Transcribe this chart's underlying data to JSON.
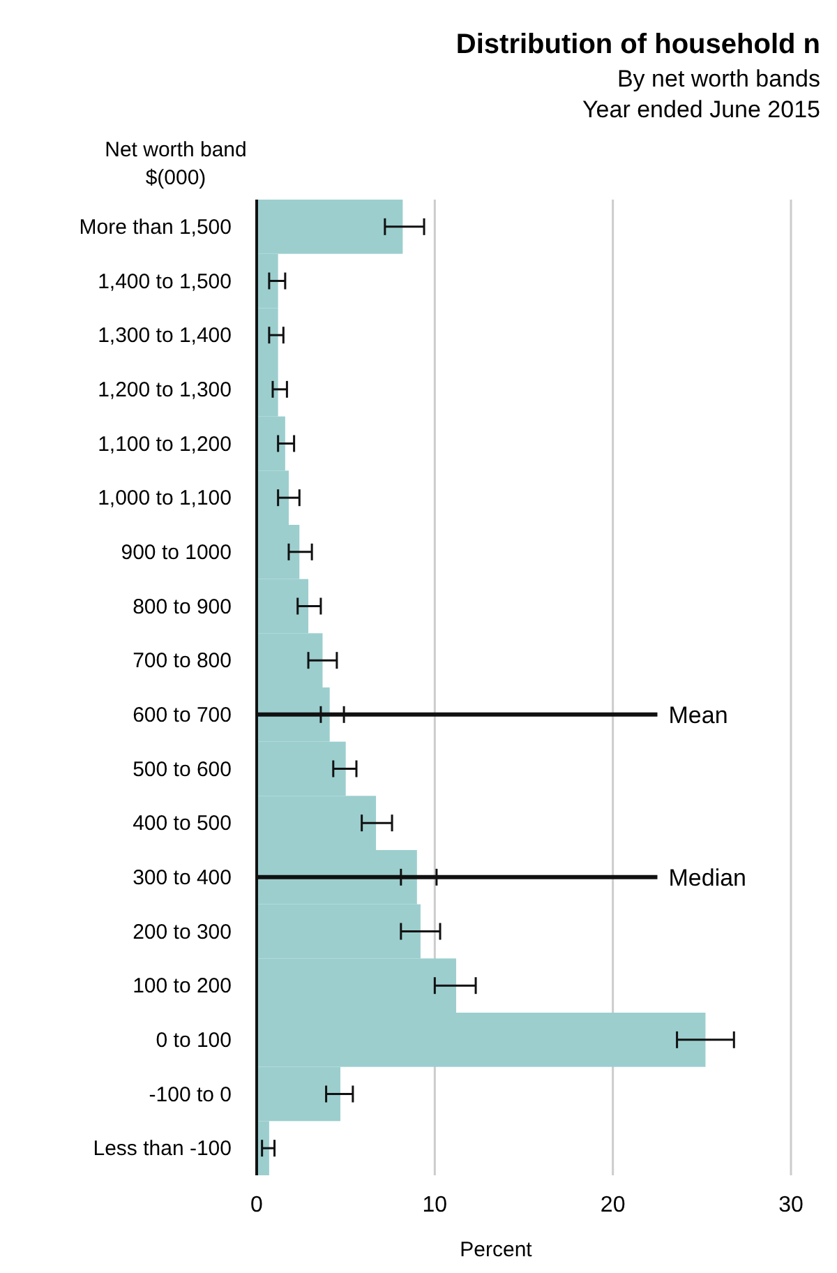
{
  "chart_data": {
    "type": "bar",
    "orientation": "horizontal",
    "title": "Distribution of household n",
    "subtitle": "By net worth bands\nYear ended June 2015",
    "ylabel": "Net worth band\n$(000)",
    "xlabel": "Percent",
    "categories": [
      "More than 1,500",
      "1,400 to 1,500",
      "1,300 to 1,400",
      "1,200 to 1,300",
      "1,100 to 1,200",
      "1,000 to 1,100",
      "900 to 1000",
      "800 to 900",
      "700 to 800",
      "600 to 700",
      "500 to 600",
      "400 to 500",
      "300 to 400",
      "200 to 300",
      "100 to 200",
      "0 to 100",
      "-100 to 0",
      "Less than -100"
    ],
    "values": [
      8.2,
      1.2,
      1.2,
      1.2,
      1.6,
      1.8,
      2.4,
      2.9,
      3.7,
      4.1,
      5.0,
      6.7,
      9.0,
      9.2,
      11.2,
      25.2,
      4.7,
      0.7
    ],
    "errors": [
      [
        7.2,
        9.4
      ],
      [
        0.7,
        1.6
      ],
      [
        0.7,
        1.5
      ],
      [
        0.9,
        1.7
      ],
      [
        1.2,
        2.1
      ],
      [
        1.2,
        2.4
      ],
      [
        1.8,
        3.1
      ],
      [
        2.3,
        3.6
      ],
      [
        2.9,
        4.5
      ],
      [
        3.6,
        4.9
      ],
      [
        4.3,
        5.6
      ],
      [
        5.9,
        7.6
      ],
      [
        8.1,
        10.1
      ],
      [
        8.1,
        10.3
      ],
      [
        10.0,
        12.3
      ],
      [
        23.6,
        26.8
      ],
      [
        3.9,
        5.4
      ],
      [
        0.3,
        1.0
      ]
    ],
    "color": "#9ccece",
    "xlim": [
      0,
      30
    ],
    "xticks": [
      0,
      10,
      20,
      30
    ],
    "grid": "x",
    "ref_lines": [
      {
        "axis": "y",
        "value": "600 to 700",
        "label": "Mean",
        "color": "#111111"
      },
      {
        "axis": "y",
        "value": "300 to 400",
        "label": "Median",
        "color": "#111111"
      }
    ]
  }
}
